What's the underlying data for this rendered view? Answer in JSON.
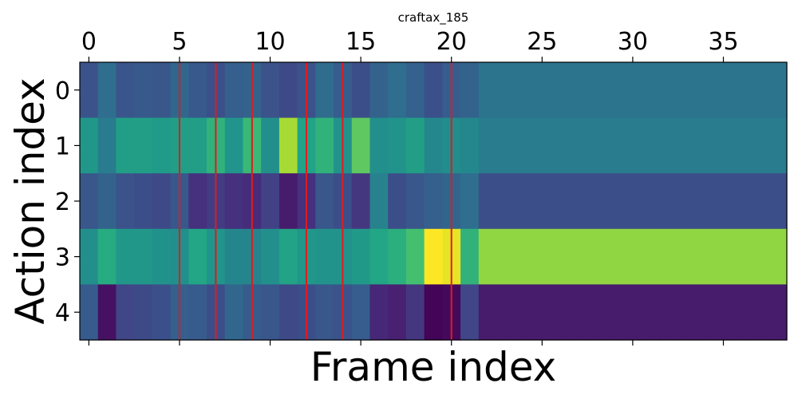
{
  "chart_data": {
    "type": "heatmap",
    "title": "craftax_185",
    "xlabel": "Frame index",
    "ylabel": "Action index",
    "x_ticks": [
      "0",
      "5",
      "10",
      "15",
      "20",
      "25",
      "30",
      "35"
    ],
    "y_ticks": [
      "0",
      "1",
      "2",
      "3",
      "4"
    ],
    "x_tick_values": [
      0,
      5,
      10,
      15,
      20,
      25,
      30,
      35
    ],
    "y_tick_values": [
      0,
      1,
      2,
      3,
      4
    ],
    "xlim": [
      -0.5,
      38.5
    ],
    "ylim": [
      4.5,
      -0.5
    ],
    "colormap": "viridis",
    "value_range": [
      0,
      1
    ],
    "frames_with_data": 39,
    "vertical_markers": {
      "frames": [
        5,
        7,
        9,
        12,
        14,
        20
      ],
      "color": "#e41a1c"
    },
    "values": [
      [
        0.32,
        0.45,
        0.33,
        0.35,
        0.34,
        0.42,
        0.35,
        0.31,
        0.38,
        0.4,
        0.32,
        0.28,
        0.32,
        0.44,
        0.37,
        0.3,
        0.4,
        0.45,
        0.39,
        0.31,
        0.37,
        0.4,
        0.48,
        0.48,
        0.48,
        0.48,
        0.48,
        0.48,
        0.48,
        0.48,
        0.48,
        0.48,
        0.48,
        0.48,
        0.48,
        0.48,
        0.48,
        0.48,
        0.48
      ],
      [
        0.66,
        0.52,
        0.7,
        0.7,
        0.68,
        0.7,
        0.7,
        0.78,
        0.65,
        0.8,
        0.62,
        0.92,
        0.72,
        0.78,
        0.64,
        0.85,
        0.62,
        0.64,
        0.7,
        0.58,
        0.61,
        0.58,
        0.52,
        0.52,
        0.52,
        0.52,
        0.52,
        0.52,
        0.52,
        0.52,
        0.52,
        0.52,
        0.52,
        0.52,
        0.52,
        0.52,
        0.52,
        0.52,
        0.52
      ],
      [
        0.34,
        0.4,
        0.32,
        0.3,
        0.28,
        0.34,
        0.18,
        0.22,
        0.18,
        0.16,
        0.24,
        0.1,
        0.18,
        0.34,
        0.3,
        0.2,
        0.55,
        0.3,
        0.34,
        0.38,
        0.41,
        0.45,
        0.3,
        0.3,
        0.3,
        0.3,
        0.3,
        0.3,
        0.3,
        0.3,
        0.3,
        0.3,
        0.3,
        0.3,
        0.3,
        0.3,
        0.3,
        0.3,
        0.3
      ],
      [
        0.62,
        0.76,
        0.66,
        0.66,
        0.63,
        0.62,
        0.74,
        0.65,
        0.57,
        0.57,
        0.62,
        0.72,
        0.66,
        0.64,
        0.64,
        0.67,
        0.74,
        0.77,
        0.82,
        1.0,
        0.98,
        0.78,
        0.9,
        0.9,
        0.9,
        0.9,
        0.9,
        0.9,
        0.9,
        0.9,
        0.9,
        0.9,
        0.9,
        0.9,
        0.9,
        0.9,
        0.9,
        0.9,
        0.9
      ],
      [
        0.36,
        0.06,
        0.26,
        0.28,
        0.31,
        0.38,
        0.36,
        0.3,
        0.42,
        0.36,
        0.34,
        0.28,
        0.3,
        0.34,
        0.32,
        0.37,
        0.14,
        0.12,
        0.2,
        0.01,
        0.03,
        0.26,
        0.1,
        0.1,
        0.1,
        0.1,
        0.1,
        0.1,
        0.1,
        0.1,
        0.1,
        0.1,
        0.1,
        0.1,
        0.1,
        0.1,
        0.1,
        0.1,
        0.1
      ]
    ]
  }
}
